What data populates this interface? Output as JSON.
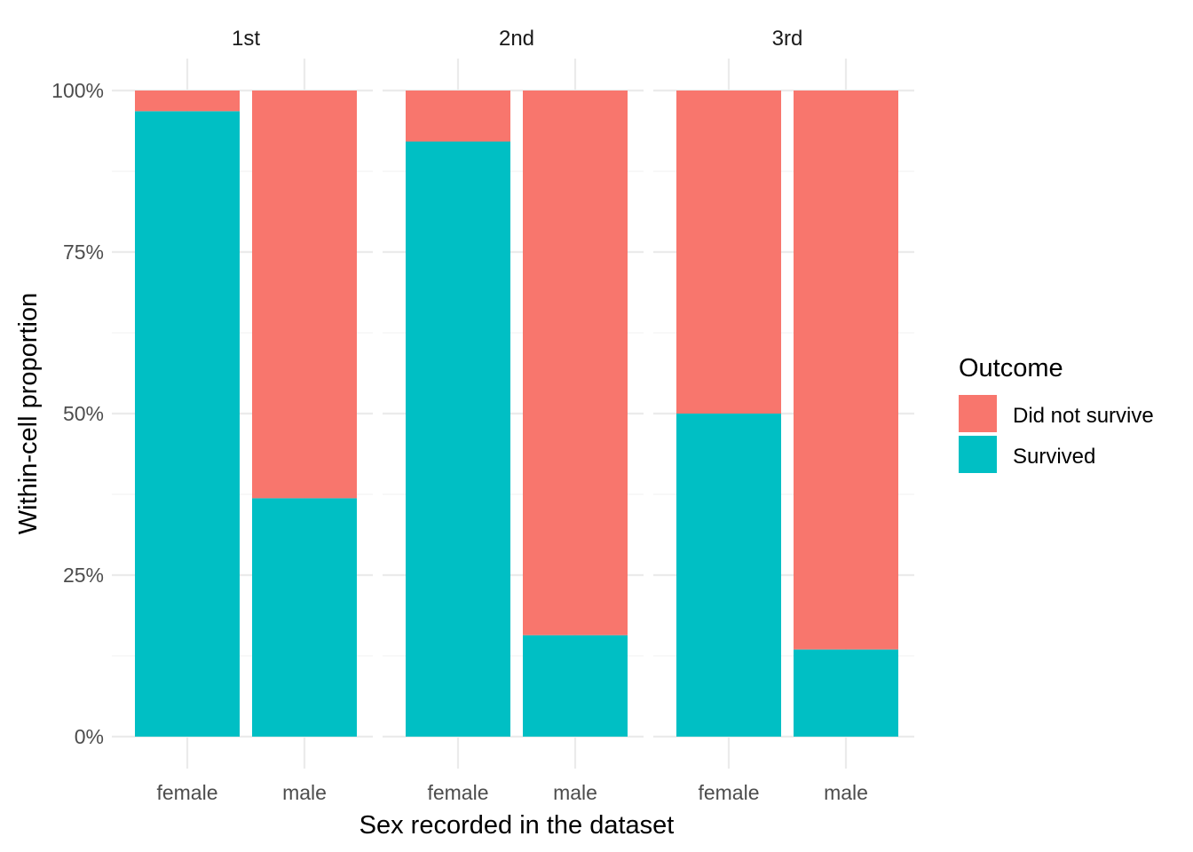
{
  "chart_data": {
    "type": "bar",
    "stacked": true,
    "position": "fill",
    "facets": [
      "1st",
      "2nd",
      "3rd"
    ],
    "categories": [
      "female",
      "male"
    ],
    "series": [
      {
        "name": "Did not survive",
        "color": "#F8766D",
        "values": [
          [
            0.032,
            0.631
          ],
          [
            0.079,
            0.843
          ],
          [
            0.5,
            0.865
          ]
        ]
      },
      {
        "name": "Survived",
        "color": "#00BFC4",
        "values": [
          [
            0.968,
            0.369
          ],
          [
            0.921,
            0.157
          ],
          [
            0.5,
            0.135
          ]
        ]
      }
    ],
    "yticks": [
      "0%",
      "25%",
      "50%",
      "75%",
      "100%"
    ],
    "ytick_values": [
      0,
      0.25,
      0.5,
      0.75,
      1.0
    ],
    "ylim": [
      0,
      1
    ],
    "xlabel": "Sex recorded in the dataset",
    "ylabel": "Within-cell proportion",
    "legend": {
      "title": "Outcome",
      "position": "right",
      "entries": [
        "Did not survive",
        "Survived"
      ]
    },
    "grid": true,
    "theme": "minimal"
  }
}
